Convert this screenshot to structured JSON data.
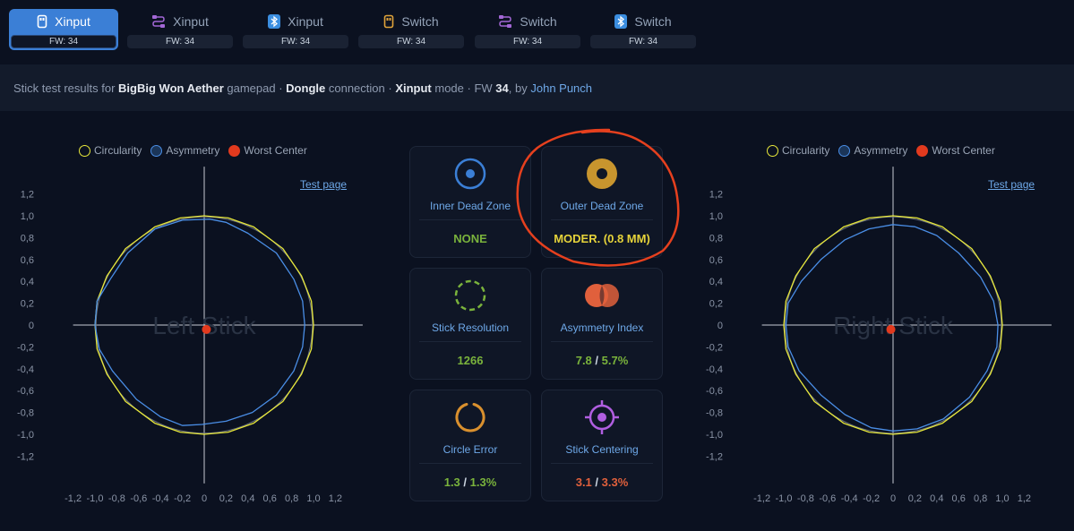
{
  "tabs": [
    {
      "label": "Xinput",
      "fw": "FW: 34",
      "icon": "dongle-icon",
      "active": true
    },
    {
      "label": "Xinput",
      "fw": "FW: 34",
      "icon": "cable-icon",
      "active": false
    },
    {
      "label": "Xinput",
      "fw": "FW: 34",
      "icon": "bluetooth-icon",
      "active": false
    },
    {
      "label": "Switch",
      "fw": "FW: 34",
      "icon": "dongle-icon",
      "active": false
    },
    {
      "label": "Switch",
      "fw": "FW: 34",
      "icon": "cable-icon",
      "active": false
    },
    {
      "label": "Switch",
      "fw": "FW: 34",
      "icon": "bluetooth-icon",
      "active": false
    }
  ],
  "info": {
    "prefix": "Stick test results for",
    "gamepad": "BigBig Won Aether",
    "gamepad_suffix": "gamepad ·",
    "connection": "Dongle",
    "connection_suffix": "connection ·",
    "mode": "Xinput",
    "mode_suffix": "mode · FW",
    "fw": "34",
    "by": ", by",
    "author": "John Punch"
  },
  "legend": {
    "circularity": "Circularity",
    "asymmetry": "Asymmetry",
    "worst_center": "Worst Center"
  },
  "test_page": "Test page",
  "left_chart": {
    "label": "Left Stick"
  },
  "right_chart": {
    "label": "Right Stick"
  },
  "cards": {
    "inner_dead_zone": {
      "title": "Inner Dead Zone",
      "value": "NONE"
    },
    "outer_dead_zone": {
      "title": "Outer Dead Zone",
      "value": "MODER. (0.8 MM)"
    },
    "stick_resolution": {
      "title": "Stick Resolution",
      "value": "1266"
    },
    "asymmetry_index": {
      "title": "Asymmetry Index",
      "value_a": "7.8",
      "slash": " / ",
      "value_b": "5.7%"
    },
    "circle_error": {
      "title": "Circle Error",
      "value_a": "1.3",
      "slash": " / ",
      "value_b": "1.3%"
    },
    "stick_centering": {
      "title": "Stick Centering",
      "value_a": "3.1",
      "slash": " / ",
      "value_b": "3.3%"
    }
  },
  "colors": {
    "accent": "#3b7fd6",
    "good": "#7ab33c",
    "warn": "#e6d33a",
    "bad": "#e0603c",
    "circularity": "#e8e83a",
    "asymmetry": "#4a8ee6",
    "worst_center": "#e23a1e",
    "annotation": "#e6401e"
  },
  "chart_data": [
    {
      "type": "scatter",
      "title": "",
      "label": "Left Stick",
      "xlim": [
        -1.2,
        1.2
      ],
      "ylim": [
        -1.2,
        1.2
      ],
      "ticks": [
        "-1,2",
        "-1,0",
        "-0,8",
        "-0,6",
        "-0,4",
        "-0,2",
        "0",
        "0,2",
        "0,4",
        "0,6",
        "0,8",
        "1,0",
        "1,2"
      ],
      "series": [
        {
          "name": "Circularity",
          "points": [
            [
              1.0,
              0
            ],
            [
              0.98,
              0.22
            ],
            [
              0.89,
              0.45
            ],
            [
              0.72,
              0.7
            ],
            [
              0.45,
              0.9
            ],
            [
              0.22,
              0.98
            ],
            [
              0,
              1.0
            ],
            [
              -0.22,
              0.98
            ],
            [
              -0.45,
              0.9
            ],
            [
              -0.72,
              0.7
            ],
            [
              -0.89,
              0.45
            ],
            [
              -0.98,
              0.22
            ],
            [
              -1.0,
              0
            ],
            [
              -0.98,
              -0.22
            ],
            [
              -0.89,
              -0.45
            ],
            [
              -0.72,
              -0.7
            ],
            [
              -0.45,
              -0.9
            ],
            [
              -0.22,
              -0.98
            ],
            [
              0,
              -1.0
            ],
            [
              0.22,
              -0.98
            ],
            [
              0.45,
              -0.9
            ],
            [
              0.72,
              -0.7
            ],
            [
              0.89,
              -0.45
            ],
            [
              0.98,
              -0.22
            ]
          ]
        },
        {
          "name": "Asymmetry",
          "points": [
            [
              0.92,
              0
            ],
            [
              0.9,
              0.22
            ],
            [
              0.82,
              0.42
            ],
            [
              0.66,
              0.66
            ],
            [
              0.4,
              0.84
            ],
            [
              0.2,
              0.94
            ],
            [
              0.05,
              0.97
            ],
            [
              -0.2,
              0.96
            ],
            [
              -0.45,
              0.88
            ],
            [
              -0.7,
              0.66
            ],
            [
              -0.86,
              0.42
            ],
            [
              -0.98,
              0.22
            ],
            [
              -1.0,
              0
            ],
            [
              -0.96,
              -0.22
            ],
            [
              -0.84,
              -0.42
            ],
            [
              -0.62,
              -0.68
            ],
            [
              -0.4,
              -0.84
            ],
            [
              -0.2,
              -0.92
            ],
            [
              -0.02,
              -0.91
            ],
            [
              0.2,
              -0.88
            ],
            [
              0.44,
              -0.8
            ],
            [
              0.66,
              -0.64
            ],
            [
              0.82,
              -0.42
            ],
            [
              0.9,
              -0.2
            ]
          ]
        },
        {
          "name": "Worst Center",
          "points": [
            [
              0.02,
              -0.04
            ]
          ]
        }
      ]
    },
    {
      "type": "scatter",
      "title": "",
      "label": "Right Stick",
      "xlim": [
        -1.2,
        1.2
      ],
      "ylim": [
        -1.2,
        1.2
      ],
      "ticks": [
        "-1,2",
        "-1,0",
        "-0,8",
        "-0,6",
        "-0,4",
        "-0,2",
        "0",
        "0,2",
        "0,4",
        "0,6",
        "0,8",
        "1,0",
        "1,2"
      ],
      "series": [
        {
          "name": "Circularity",
          "points": [
            [
              1.0,
              0
            ],
            [
              0.98,
              0.22
            ],
            [
              0.89,
              0.45
            ],
            [
              0.72,
              0.7
            ],
            [
              0.45,
              0.9
            ],
            [
              0.22,
              0.98
            ],
            [
              0,
              1.0
            ],
            [
              -0.22,
              0.98
            ],
            [
              -0.45,
              0.9
            ],
            [
              -0.72,
              0.7
            ],
            [
              -0.89,
              0.45
            ],
            [
              -0.98,
              0.22
            ],
            [
              -1.0,
              0
            ],
            [
              -0.98,
              -0.22
            ],
            [
              -0.89,
              -0.45
            ],
            [
              -0.72,
              -0.7
            ],
            [
              -0.45,
              -0.9
            ],
            [
              -0.22,
              -0.98
            ],
            [
              0,
              -1.0
            ],
            [
              0.22,
              -0.98
            ],
            [
              0.45,
              -0.9
            ],
            [
              0.72,
              -0.7
            ],
            [
              0.89,
              -0.45
            ],
            [
              0.98,
              -0.22
            ]
          ]
        },
        {
          "name": "Asymmetry",
          "points": [
            [
              0.96,
              0
            ],
            [
              0.92,
              0.22
            ],
            [
              0.8,
              0.44
            ],
            [
              0.6,
              0.66
            ],
            [
              0.4,
              0.82
            ],
            [
              0.2,
              0.9
            ],
            [
              0,
              0.92
            ],
            [
              -0.22,
              0.88
            ],
            [
              -0.44,
              0.78
            ],
            [
              -0.66,
              0.6
            ],
            [
              -0.84,
              0.4
            ],
            [
              -0.96,
              0.2
            ],
            [
              -0.98,
              0
            ],
            [
              -0.96,
              -0.2
            ],
            [
              -0.86,
              -0.42
            ],
            [
              -0.66,
              -0.64
            ],
            [
              -0.44,
              -0.82
            ],
            [
              -0.2,
              -0.94
            ],
            [
              0,
              -0.97
            ],
            [
              0.22,
              -0.95
            ],
            [
              0.46,
              -0.86
            ],
            [
              0.7,
              -0.66
            ],
            [
              0.86,
              -0.42
            ],
            [
              0.95,
              -0.2
            ]
          ]
        },
        {
          "name": "Worst Center",
          "points": [
            [
              -0.02,
              -0.04
            ]
          ]
        }
      ]
    }
  ]
}
